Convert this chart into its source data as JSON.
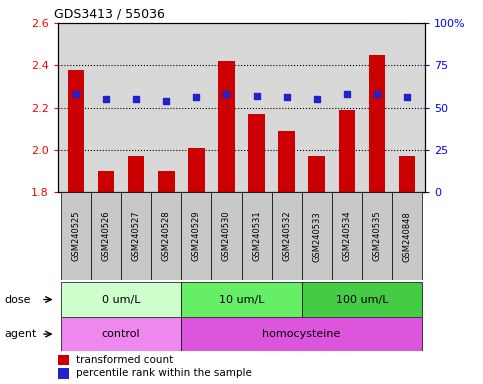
{
  "title": "GDS3413 / 55036",
  "samples": [
    "GSM240525",
    "GSM240526",
    "GSM240527",
    "GSM240528",
    "GSM240529",
    "GSM240530",
    "GSM240531",
    "GSM240532",
    "GSM240533",
    "GSM240534",
    "GSM240535",
    "GSM240848"
  ],
  "transformed_count": [
    2.38,
    1.9,
    1.97,
    1.9,
    2.01,
    2.42,
    2.17,
    2.09,
    1.97,
    2.19,
    2.45,
    1.97
  ],
  "percentile_rank": [
    58,
    55,
    55,
    54,
    56,
    58,
    57,
    56,
    55,
    58,
    58,
    56
  ],
  "ylim_left": [
    1.8,
    2.6
  ],
  "ylim_right": [
    0,
    100
  ],
  "yticks_left": [
    1.8,
    2.0,
    2.2,
    2.4,
    2.6
  ],
  "yticks_right": [
    0,
    25,
    50,
    75,
    100
  ],
  "ytick_labels_right": [
    "0",
    "25",
    "50",
    "75",
    "100%"
  ],
  "bar_color": "#cc0000",
  "dot_color": "#2222cc",
  "bar_bottom": 1.8,
  "dose_groups": [
    {
      "label": "0 um/L",
      "start": 0,
      "end": 4,
      "color": "#ccffcc"
    },
    {
      "label": "10 um/L",
      "start": 4,
      "end": 8,
      "color": "#66ee66"
    },
    {
      "label": "100 um/L",
      "start": 8,
      "end": 12,
      "color": "#44cc44"
    }
  ],
  "agent_groups": [
    {
      "label": "control",
      "start": 0,
      "end": 4,
      "color": "#ee88ee"
    },
    {
      "label": "homocysteine",
      "start": 4,
      "end": 12,
      "color": "#dd55dd"
    }
  ],
  "dose_label": "dose",
  "agent_label": "agent",
  "legend_bar_label": "transformed count",
  "legend_dot_label": "percentile rank within the sample",
  "plot_bg": "#d8d8d8",
  "xtick_bg": "#c8c8c8"
}
